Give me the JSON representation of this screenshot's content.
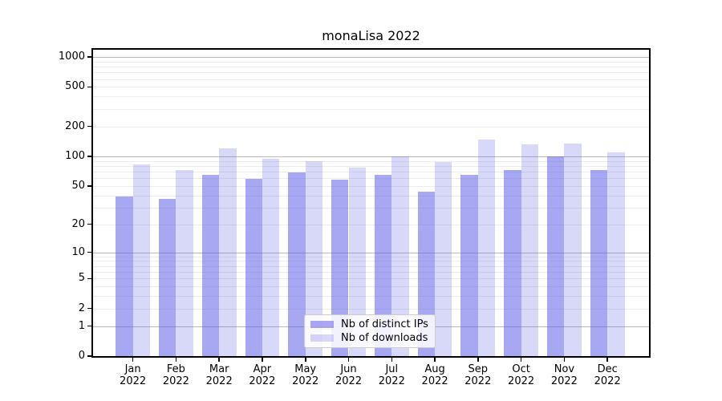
{
  "chart_data": {
    "type": "bar",
    "title": "monaLisa 2022",
    "categories": [
      "Jan",
      "Feb",
      "Mar",
      "Apr",
      "May",
      "Jun",
      "Jul",
      "Aug",
      "Sep",
      "Oct",
      "Nov",
      "Dec"
    ],
    "category_year_line": "2022",
    "series": [
      {
        "name": "Nb of distinct IPs",
        "color": "rgba(90,90,230,0.53)",
        "values": [
          39,
          37,
          65,
          59,
          68,
          58,
          65,
          44,
          65,
          72,
          100,
          73
        ]
      },
      {
        "name": "Nb of downloads",
        "color": "rgba(90,90,230,0.24)",
        "values": [
          82,
          73,
          121,
          95,
          90,
          77,
          100,
          87,
          147,
          131,
          135,
          110
        ]
      }
    ],
    "xlabel": "",
    "ylabel": "",
    "y_axis": {
      "scale": "symlog",
      "tick_values": [
        0,
        1,
        2,
        5,
        10,
        20,
        50,
        100,
        200,
        500,
        1000
      ],
      "tick_labels": [
        "0",
        "1",
        "2",
        "5",
        "10",
        "20",
        "50",
        "100",
        "200",
        "500",
        "1000"
      ],
      "major_grid_values": [
        1,
        10,
        100,
        1000
      ],
      "range": [
        0,
        1000
      ]
    },
    "grid": "on",
    "legend": {
      "position": "lower center",
      "entries": [
        "Nb of distinct IPs",
        "Nb of downloads"
      ]
    }
  },
  "colors": {
    "bar_distinct_ips": "rgba(90,90,230,0.53)",
    "bar_downloads": "rgba(90,90,230,0.24)",
    "major_grid": "#b9b9b9",
    "minor_grid": "#ececec",
    "spine": "#000000",
    "text": "#000000"
  }
}
